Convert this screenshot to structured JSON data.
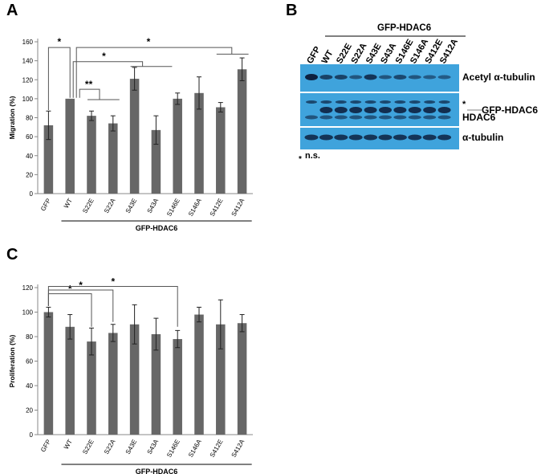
{
  "panels": {
    "a": "A",
    "b": "B",
    "c": "C"
  },
  "chart_data": [
    {
      "panel": "A",
      "type": "bar",
      "ylabel": "Migration (%)",
      "group_label": "GFP-HDAC6",
      "ylim": [
        0,
        160
      ],
      "yticks": [
        0,
        20,
        40,
        60,
        80,
        100,
        120,
        140,
        160
      ],
      "categories": [
        "GFP",
        "WT",
        "S22E",
        "S22A",
        "S43E",
        "S43A",
        "S146E",
        "S146A",
        "S412E",
        "S412A"
      ],
      "values": [
        72,
        100,
        82,
        74,
        121,
        67,
        100,
        106,
        91,
        131
      ],
      "errors": [
        15,
        0,
        5,
        8,
        12,
        15,
        6,
        17,
        5,
        12
      ],
      "significance": [
        {
          "label": "*",
          "from": "GFP",
          "to": "WT"
        },
        {
          "label": "**",
          "from": "WT",
          "to": "S22E/S22A"
        },
        {
          "label": "*",
          "from": "WT",
          "to": "S43E/S43A"
        },
        {
          "label": "*",
          "from": "WT",
          "to": "S412E/S412A"
        }
      ],
      "bar_color": "#676767"
    },
    {
      "panel": "C",
      "type": "bar",
      "ylabel": "Proliferation (%)",
      "group_label": "GFP-HDAC6",
      "ylim": [
        0,
        120
      ],
      "yticks": [
        0,
        20,
        40,
        60,
        80,
        100,
        120
      ],
      "categories": [
        "GFP",
        "WT",
        "S22E",
        "S22A",
        "S43E",
        "S43A",
        "S146E",
        "S146A",
        "S412E",
        "S412A"
      ],
      "values": [
        100,
        88,
        76,
        83,
        90,
        82,
        78,
        98,
        90,
        91
      ],
      "errors": [
        4,
        10,
        11,
        7,
        16,
        13,
        7,
        6,
        20,
        7
      ],
      "significance": [
        {
          "label": "*",
          "from": "GFP",
          "to": "S22E"
        },
        {
          "label": "*",
          "from": "GFP",
          "to": "S22A"
        },
        {
          "label": "*",
          "from": "GFP",
          "to": "S146E"
        }
      ],
      "bar_color": "#676767"
    }
  ],
  "blot": {
    "header": "GFP-HDAC6",
    "lanes": [
      "GFP",
      "WT",
      "S22E",
      "S22A",
      "S43E",
      "S43A",
      "S146E",
      "S146A",
      "S412E",
      "S412A"
    ],
    "labels": {
      "acetyl": "Acetyl α-tubulin",
      "gfp_hdac6": "GFP-HDAC6",
      "hdac6": "HDAC6",
      "tubulin": "α-tubulin",
      "star": "*",
      "ns": "n.s."
    },
    "background_color": "#3fa3dc",
    "band_color": "#0d2140"
  }
}
